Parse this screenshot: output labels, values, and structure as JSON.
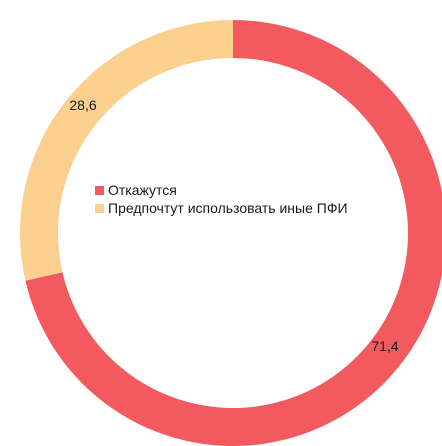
{
  "chart_data": {
    "type": "pie",
    "donut": true,
    "categories": [
      "Откажутся",
      "Предпочтут использовать иные ПФИ"
    ],
    "values": [
      71.4,
      28.6
    ],
    "value_labels": [
      "71,4",
      "28,6"
    ],
    "colors": [
      "#f25a5f",
      "#fbd08e"
    ],
    "legend_position": "center"
  }
}
